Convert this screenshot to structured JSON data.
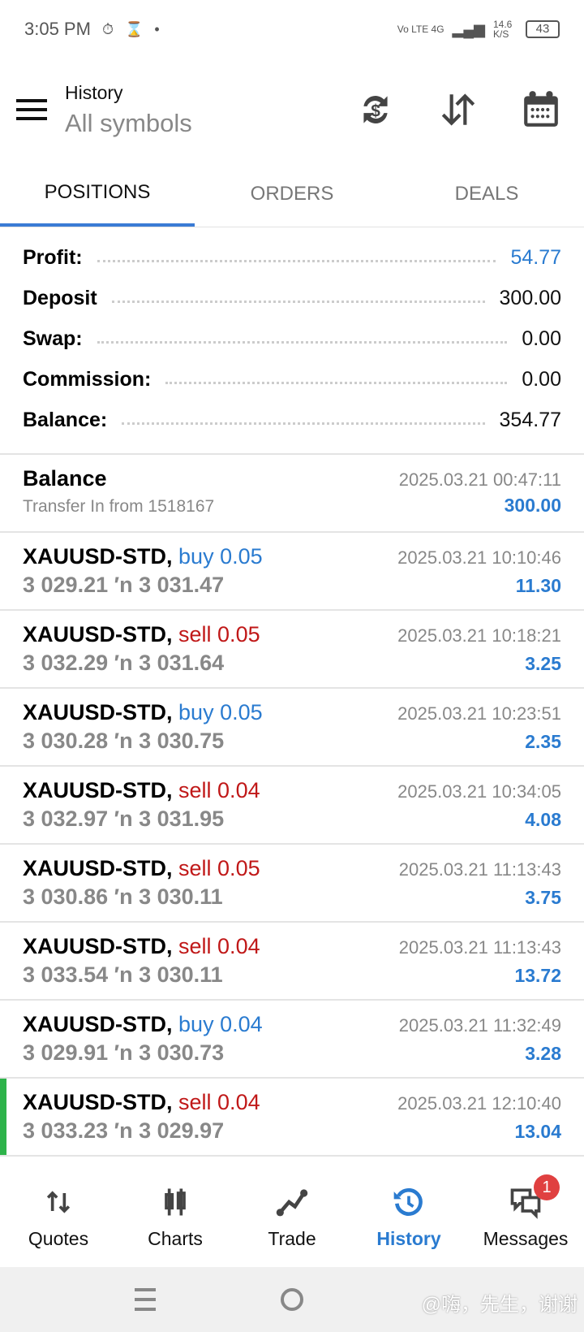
{
  "status": {
    "time": "3:05 PM",
    "net": "Vo LTE 4G",
    "speed": "14.6 K/S",
    "battery": "43"
  },
  "header": {
    "title": "History",
    "subtitle": "All symbols",
    "icons": [
      "currency-exchange-icon",
      "sort-icon",
      "calendar-icon"
    ]
  },
  "tabs": [
    {
      "label": "POSITIONS",
      "active": true
    },
    {
      "label": "ORDERS"
    },
    {
      "label": "DEALS"
    }
  ],
  "summary": [
    {
      "label": "Profit:",
      "value": "54.77",
      "color": "#2a7bd0"
    },
    {
      "label": "Deposit",
      "value": "300.00"
    },
    {
      "label": "Swap:",
      "value": "0.00"
    },
    {
      "label": "Commission:",
      "value": "0.00"
    },
    {
      "label": "Balance:",
      "value": "354.77"
    }
  ],
  "balance_entry": {
    "title": "Balance",
    "date": "2025.03.21 00:47:11",
    "desc": "Transfer In from 1518167",
    "amount": "300.00"
  },
  "positions": [
    {
      "symbol": "XAUUSD-STD,",
      "side": "buy 0.05",
      "date": "2025.03.21 10:10:46",
      "prices": "3 029.21 ′n  3 031.47",
      "profit": "11.30"
    },
    {
      "symbol": "XAUUSD-STD,",
      "side": "sell 0.05",
      "date": "2025.03.21 10:18:21",
      "prices": "3 032.29 ′n  3 031.64",
      "profit": "3.25"
    },
    {
      "symbol": "XAUUSD-STD,",
      "side": "buy 0.05",
      "date": "2025.03.21 10:23:51",
      "prices": "3 030.28 ′n  3 030.75",
      "profit": "2.35"
    },
    {
      "symbol": "XAUUSD-STD,",
      "side": "sell 0.04",
      "date": "2025.03.21 10:34:05",
      "prices": "3 032.97 ′n  3 031.95",
      "profit": "4.08"
    },
    {
      "symbol": "XAUUSD-STD,",
      "side": "sell 0.05",
      "date": "2025.03.21 11:13:43",
      "prices": "3 030.86 ′n  3 030.11",
      "profit": "3.75"
    },
    {
      "symbol": "XAUUSD-STD,",
      "side": "sell 0.04",
      "date": "2025.03.21 11:13:43",
      "prices": "3 033.54 ′n  3 030.11",
      "profit": "13.72"
    },
    {
      "symbol": "XAUUSD-STD,",
      "side": "buy 0.04",
      "date": "2025.03.21 11:32:49",
      "prices": "3 029.91 ′n  3 030.73",
      "profit": "3.28"
    },
    {
      "symbol": "XAUUSD-STD,",
      "side": "sell 0.04",
      "date": "2025.03.21 12:10:40",
      "prices": "3 033.23 ′n  3 029.97",
      "profit": "13.04"
    }
  ],
  "nav": [
    {
      "label": "Quotes"
    },
    {
      "label": "Charts"
    },
    {
      "label": "Trade"
    },
    {
      "label": "History",
      "active": true
    },
    {
      "label": "Messages",
      "badge": "1"
    }
  ],
  "watermark": "@嗨，先生，谢谢",
  "colors": {
    "accent": "#2a7bd0",
    "sell": "#c01818",
    "badge": "#e04040"
  }
}
